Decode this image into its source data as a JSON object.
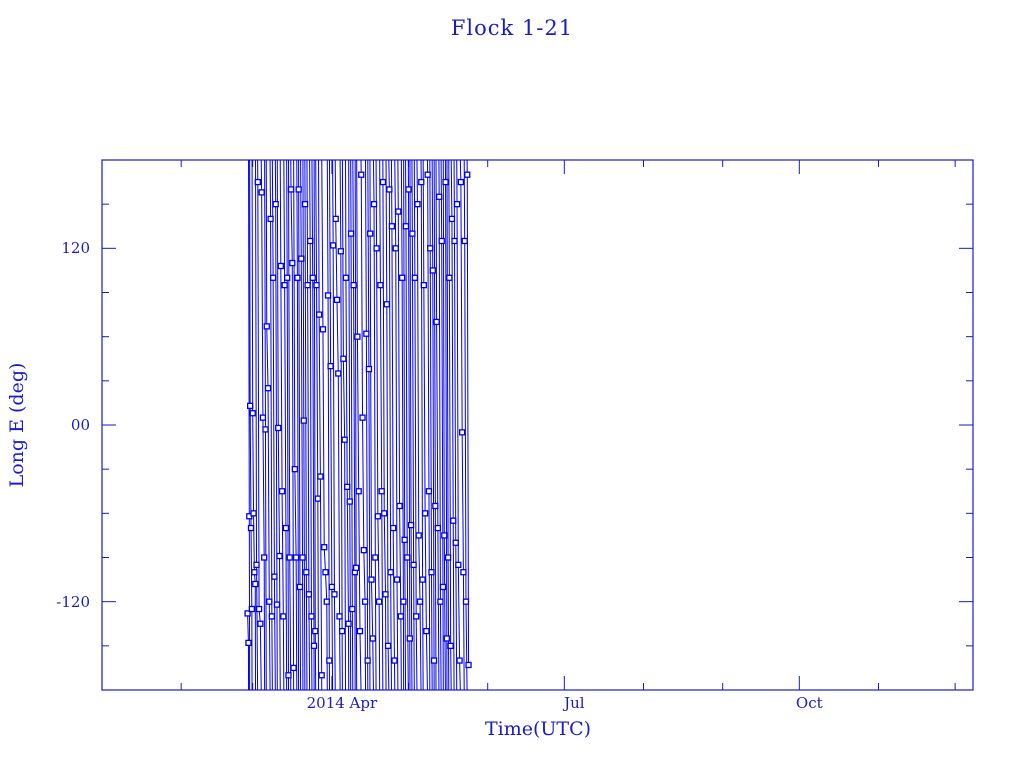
{
  "chart_data": {
    "type": "line",
    "title": "Flock 1-21",
    "xlabel": "Time(UTC)",
    "ylabel": "Long E (deg)",
    "xlim": [
      "2014-01-01",
      "2014-12-08"
    ],
    "ylim": [
      -180,
      180
    ],
    "grid": false,
    "color": "#0000ee",
    "axis_color": "#1a1acc",
    "marker": "square",
    "x_ticks": [
      {
        "date": "2014-04-01",
        "label": "2014 Apr"
      },
      {
        "date": "2014-07-01",
        "label": "Jul"
      },
      {
        "date": "2014-10-01",
        "label": "Oct"
      }
    ],
    "y_ticks": [
      {
        "value": 120,
        "label": "120"
      },
      {
        "value": 0,
        "label": "00"
      },
      {
        "value": -120,
        "label": "-120"
      }
    ],
    "points": [
      [
        "2014-02-27T00:00",
        -128
      ],
      [
        "2014-02-27T08:00",
        -148
      ],
      [
        "2014-02-27T16:00",
        -62
      ],
      [
        "2014-02-28T00:00",
        13
      ],
      [
        "2014-02-28T08:00",
        -70
      ],
      [
        "2014-02-28T16:00",
        -125
      ],
      [
        "2014-03-01T00:00",
        8
      ],
      [
        "2014-03-01T08:00",
        -60
      ],
      [
        "2014-03-01T16:00",
        -100
      ],
      [
        "2014-03-02T00:00",
        -108
      ],
      [
        "2014-03-02T12:00",
        -95
      ],
      [
        "2014-03-03T00:00",
        165
      ],
      [
        "2014-03-03T12:00",
        -125
      ],
      [
        "2014-03-04T00:00",
        -135
      ],
      [
        "2014-03-04T12:00",
        158
      ],
      [
        "2014-03-05T00:00",
        5
      ],
      [
        "2014-03-05T12:00",
        -90
      ],
      [
        "2014-03-06T00:00",
        -3
      ],
      [
        "2014-03-06T12:00",
        67
      ],
      [
        "2014-03-07T00:00",
        25
      ],
      [
        "2014-03-07T12:00",
        -120
      ],
      [
        "2014-03-08T00:00",
        140
      ],
      [
        "2014-03-08T12:00",
        -130
      ],
      [
        "2014-03-09T00:00",
        100
      ],
      [
        "2014-03-09T12:00",
        -103
      ],
      [
        "2014-03-10T00:00",
        150
      ],
      [
        "2014-03-10T12:00",
        -122
      ],
      [
        "2014-03-11T00:00",
        -2
      ],
      [
        "2014-03-11T12:00",
        -89
      ],
      [
        "2014-03-12T00:00",
        108
      ],
      [
        "2014-03-12T12:00",
        -45
      ],
      [
        "2014-03-13T00:00",
        -130
      ],
      [
        "2014-03-13T12:00",
        95
      ],
      [
        "2014-03-14T00:00",
        -70
      ],
      [
        "2014-03-14T12:00",
        100
      ],
      [
        "2014-03-15T00:00",
        -170
      ],
      [
        "2014-03-15T12:00",
        -90
      ],
      [
        "2014-03-16T00:00",
        160
      ],
      [
        "2014-03-16T12:00",
        110
      ],
      [
        "2014-03-17T00:00",
        -165
      ],
      [
        "2014-03-17T12:00",
        -30
      ],
      [
        "2014-03-18T00:00",
        -90
      ],
      [
        "2014-03-18T12:00",
        100
      ],
      [
        "2014-03-19T00:00",
        160
      ],
      [
        "2014-03-19T12:00",
        -110
      ],
      [
        "2014-03-20T00:00",
        113
      ],
      [
        "2014-03-20T12:00",
        -90
      ],
      [
        "2014-03-21T00:00",
        3
      ],
      [
        "2014-03-21T12:00",
        150
      ],
      [
        "2014-03-22T00:00",
        -100
      ],
      [
        "2014-03-22T12:00",
        95
      ],
      [
        "2014-03-23T00:00",
        -115
      ],
      [
        "2014-03-23T12:00",
        125
      ],
      [
        "2014-03-24T00:00",
        -130
      ],
      [
        "2014-03-24T12:00",
        100
      ],
      [
        "2014-03-25T00:00",
        -150
      ],
      [
        "2014-03-25T12:00",
        -140
      ],
      [
        "2014-03-26T00:00",
        95
      ],
      [
        "2014-03-26T12:00",
        -50
      ],
      [
        "2014-03-27T00:00",
        75
      ],
      [
        "2014-03-27T12:00",
        -35
      ],
      [
        "2014-03-28T00:00",
        -170
      ],
      [
        "2014-03-28T12:00",
        65
      ],
      [
        "2014-03-29T00:00",
        -83
      ],
      [
        "2014-03-29T12:00",
        -100
      ],
      [
        "2014-03-30T00:00",
        -120
      ],
      [
        "2014-03-30T12:00",
        88
      ],
      [
        "2014-03-31T00:00",
        -160
      ],
      [
        "2014-03-31T12:00",
        40
      ],
      [
        "2014-04-01T00:00",
        -110
      ],
      [
        "2014-04-01T12:00",
        122
      ],
      [
        "2014-04-02T00:00",
        -115
      ],
      [
        "2014-04-02T12:00",
        140
      ],
      [
        "2014-04-03T00:00",
        85
      ],
      [
        "2014-04-03T12:00",
        35
      ],
      [
        "2014-04-04T00:00",
        -130
      ],
      [
        "2014-04-04T12:00",
        118
      ],
      [
        "2014-04-05T00:00",
        -140
      ],
      [
        "2014-04-05T12:00",
        45
      ],
      [
        "2014-04-06T00:00",
        -10
      ],
      [
        "2014-04-06T12:00",
        100
      ],
      [
        "2014-04-07T00:00",
        -42
      ],
      [
        "2014-04-07T12:00",
        -135
      ],
      [
        "2014-04-08T00:00",
        -52
      ],
      [
        "2014-04-08T12:00",
        130
      ],
      [
        "2014-04-09T00:00",
        -125
      ],
      [
        "2014-04-09T12:00",
        95
      ],
      [
        "2014-04-10T00:00",
        -100
      ],
      [
        "2014-04-10T12:00",
        -97
      ],
      [
        "2014-04-11T00:00",
        60
      ],
      [
        "2014-04-11T12:00",
        -45
      ],
      [
        "2014-04-12T00:00",
        -140
      ],
      [
        "2014-04-12T12:00",
        170
      ],
      [
        "2014-04-13T00:00",
        5
      ],
      [
        "2014-04-13T12:00",
        -85
      ],
      [
        "2014-04-14T00:00",
        -120
      ],
      [
        "2014-04-14T12:00",
        62
      ],
      [
        "2014-04-15T00:00",
        -160
      ],
      [
        "2014-04-15T12:00",
        38
      ],
      [
        "2014-04-16T00:00",
        130
      ],
      [
        "2014-04-16T12:00",
        -105
      ],
      [
        "2014-04-17T00:00",
        -145
      ],
      [
        "2014-04-17T12:00",
        150
      ],
      [
        "2014-04-18T00:00",
        -90
      ],
      [
        "2014-04-18T12:00",
        120
      ],
      [
        "2014-04-19T00:00",
        -62
      ],
      [
        "2014-04-19T12:00",
        -120
      ],
      [
        "2014-04-20T00:00",
        95
      ],
      [
        "2014-04-20T12:00",
        -45
      ],
      [
        "2014-04-21T00:00",
        165
      ],
      [
        "2014-04-21T12:00",
        -60
      ],
      [
        "2014-04-22T00:00",
        -115
      ],
      [
        "2014-04-22T12:00",
        82
      ],
      [
        "2014-04-23T00:00",
        -150
      ],
      [
        "2014-04-23T12:00",
        160
      ],
      [
        "2014-04-24T00:00",
        -100
      ],
      [
        "2014-04-24T12:00",
        135
      ],
      [
        "2014-04-25T00:00",
        -70
      ],
      [
        "2014-04-25T12:00",
        -160
      ],
      [
        "2014-04-26T00:00",
        120
      ],
      [
        "2014-04-26T12:00",
        -105
      ],
      [
        "2014-04-27T00:00",
        145
      ],
      [
        "2014-04-27T12:00",
        -55
      ],
      [
        "2014-04-28T00:00",
        -130
      ],
      [
        "2014-04-28T12:00",
        100
      ],
      [
        "2014-04-29T00:00",
        -120
      ],
      [
        "2014-04-29T12:00",
        -78
      ],
      [
        "2014-04-30T00:00",
        135
      ],
      [
        "2014-04-30T12:00",
        -90
      ],
      [
        "2014-05-01T00:00",
        160
      ],
      [
        "2014-05-01T12:00",
        -145
      ],
      [
        "2014-05-02T00:00",
        -68
      ],
      [
        "2014-05-02T12:00",
        130
      ],
      [
        "2014-05-03T00:00",
        -95
      ],
      [
        "2014-05-03T12:00",
        100
      ],
      [
        "2014-05-04T00:00",
        -130
      ],
      [
        "2014-05-04T12:00",
        150
      ],
      [
        "2014-05-05T00:00",
        -75
      ],
      [
        "2014-05-05T12:00",
        -120
      ],
      [
        "2014-05-06T00:00",
        165
      ],
      [
        "2014-05-06T12:00",
        -105
      ],
      [
        "2014-05-07T00:00",
        95
      ],
      [
        "2014-05-07T12:00",
        -60
      ],
      [
        "2014-05-08T00:00",
        -140
      ],
      [
        "2014-05-08T12:00",
        170
      ],
      [
        "2014-05-09T00:00",
        -45
      ],
      [
        "2014-05-09T12:00",
        120
      ],
      [
        "2014-05-10T00:00",
        -100
      ],
      [
        "2014-05-10T12:00",
        105
      ],
      [
        "2014-05-11T00:00",
        -160
      ],
      [
        "2014-05-11T12:00",
        -55
      ],
      [
        "2014-05-12T00:00",
        70
      ],
      [
        "2014-05-12T12:00",
        -70
      ],
      [
        "2014-05-13T00:00",
        155
      ],
      [
        "2014-05-13T12:00",
        -120
      ],
      [
        "2014-05-14T00:00",
        125
      ],
      [
        "2014-05-14T12:00",
        -110
      ],
      [
        "2014-05-15T00:00",
        -75
      ],
      [
        "2014-05-15T12:00",
        165
      ],
      [
        "2014-05-16T00:00",
        -145
      ],
      [
        "2014-05-16T12:00",
        -90
      ],
      [
        "2014-05-17T00:00",
        100
      ],
      [
        "2014-05-17T12:00",
        -150
      ],
      [
        "2014-05-18T00:00",
        140
      ],
      [
        "2014-05-18T12:00",
        -65
      ],
      [
        "2014-05-19T00:00",
        125
      ],
      [
        "2014-05-19T12:00",
        -80
      ],
      [
        "2014-05-20T00:00",
        150
      ],
      [
        "2014-05-20T12:00",
        -95
      ],
      [
        "2014-05-21T00:00",
        -160
      ],
      [
        "2014-05-21T12:00",
        165
      ],
      [
        "2014-05-22T00:00",
        -5
      ],
      [
        "2014-05-22T12:00",
        -100
      ],
      [
        "2014-05-23T00:00",
        125
      ],
      [
        "2014-05-23T12:00",
        -120
      ],
      [
        "2014-05-24T00:00",
        170
      ],
      [
        "2014-05-24T12:00",
        -163
      ]
    ]
  }
}
